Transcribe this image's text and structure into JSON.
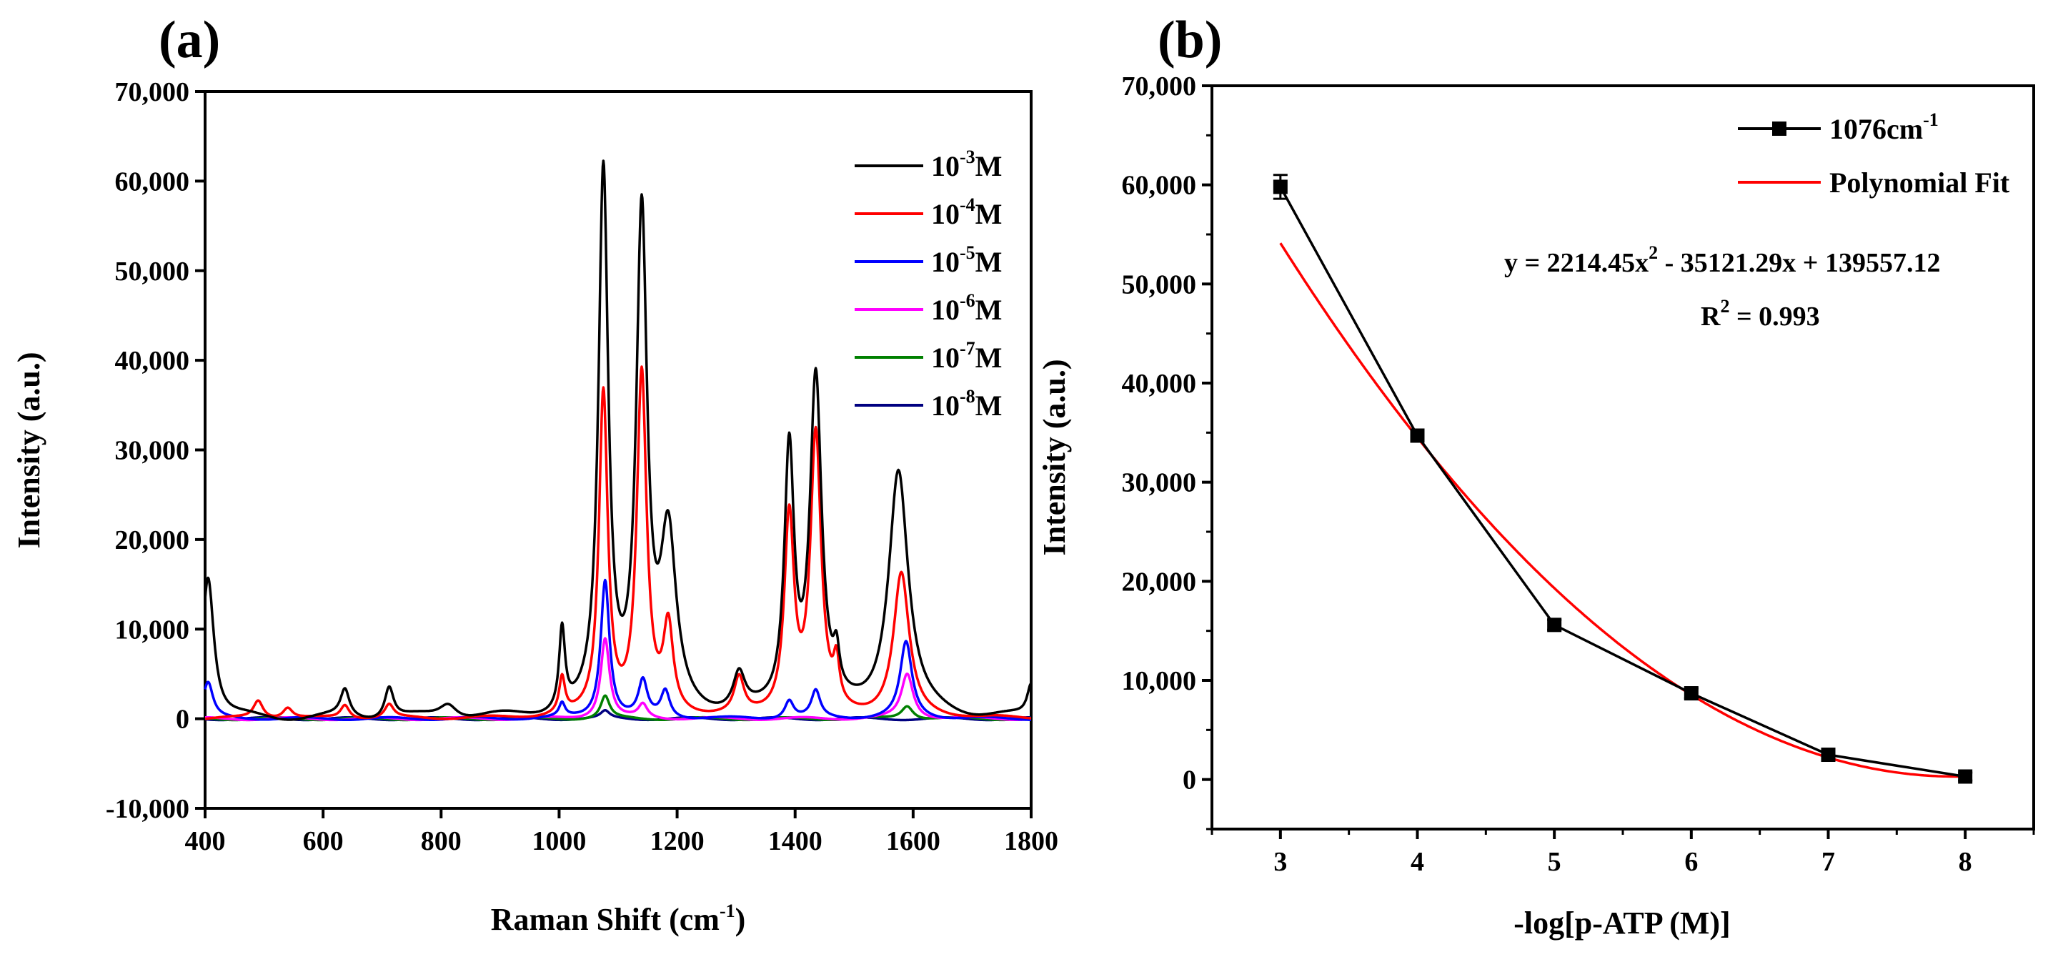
{
  "chart_data": [
    {
      "type": "line",
      "panel_label": "(a)",
      "xlabel": "Raman Shift (cm",
      "xlabel_sup": "-1",
      "xlabel_suffix": ")",
      "ylabel": "Intensity (a.u.)",
      "xlim": [
        400,
        1800
      ],
      "ylim": [
        -10000,
        70000
      ],
      "xticks": [
        400,
        600,
        800,
        1000,
        1200,
        1400,
        1600,
        1800
      ],
      "xtick_labels": [
        "400",
        "600",
        "800",
        "1000",
        "1200",
        "1400",
        "1600",
        "1800"
      ],
      "yticks": [
        -10000,
        0,
        10000,
        20000,
        30000,
        40000,
        50000,
        60000,
        70000
      ],
      "ytick_labels": [
        "-10,000",
        "0",
        "10,000",
        "20,000",
        "30,000",
        "40,000",
        "50,000",
        "60,000",
        "70,000"
      ],
      "legend_position": "top-right",
      "series": [
        {
          "name": "10",
          "exp": "-3",
          "unit": "M",
          "color": "#000000",
          "peaks": [
            [
              405,
              16000,
              12
            ],
            [
              637,
              3000,
              9
            ],
            [
              712,
              3500,
              9
            ],
            [
              812,
              1600,
              18
            ],
            [
              1005,
              9000,
              6
            ],
            [
              1075,
              60000,
              10
            ],
            [
              1140,
              55000,
              11
            ],
            [
              1185,
              19000,
              16
            ],
            [
              1305,
              4000,
              12
            ],
            [
              1390,
              29000,
              10
            ],
            [
              1435,
              37000,
              12
            ],
            [
              1470,
              4000,
              6
            ],
            [
              1575,
              27500,
              20
            ],
            [
              1800,
              3500,
              8
            ]
          ]
        },
        {
          "name": "10",
          "exp": "-4",
          "unit": "M",
          "color": "#ff0000",
          "peaks": [
            [
              490,
              2000,
              10
            ],
            [
              540,
              1200,
              10
            ],
            [
              637,
              1500,
              9
            ],
            [
              712,
              1500,
              9
            ],
            [
              1005,
              4000,
              6
            ],
            [
              1075,
              36000,
              9
            ],
            [
              1140,
              38000,
              10
            ],
            [
              1185,
              9500,
              10
            ],
            [
              1305,
              4000,
              10
            ],
            [
              1390,
              22000,
              10
            ],
            [
              1435,
              31000,
              11
            ],
            [
              1470,
              4500,
              6
            ],
            [
              1580,
              16000,
              16
            ]
          ]
        },
        {
          "name": "10",
          "exp": "-5",
          "unit": "M",
          "color": "#0000ff",
          "peaks": [
            [
              405,
              4000,
              10
            ],
            [
              1005,
              1500,
              6
            ],
            [
              1078,
              15500,
              9
            ],
            [
              1142,
              4000,
              9
            ],
            [
              1180,
              3000,
              9
            ],
            [
              1390,
              2000,
              9
            ],
            [
              1435,
              3000,
              9
            ],
            [
              1588,
              8500,
              12
            ]
          ]
        },
        {
          "name": "10",
          "exp": "-6",
          "unit": "M",
          "color": "#ff00ff",
          "peaks": [
            [
              1078,
              9000,
              9
            ],
            [
              1142,
              1500,
              9
            ],
            [
              1590,
              5000,
              12
            ]
          ]
        },
        {
          "name": "10",
          "exp": "-7",
          "unit": "M",
          "color": "#008000",
          "peaks": [
            [
              1078,
              2500,
              9
            ],
            [
              1590,
              1500,
              12
            ]
          ]
        },
        {
          "name": "10",
          "exp": "-8",
          "unit": "M",
          "color": "#000080",
          "peaks": [
            [
              1078,
              800,
              9
            ]
          ]
        }
      ]
    },
    {
      "type": "line",
      "panel_label": "(b)",
      "xlabel": "-log[p-ATP (M)]",
      "ylabel": "Intensity (a.u.)",
      "xlim": [
        2.5,
        8.5
      ],
      "ylim": [
        -5000,
        70000
      ],
      "xticks": [
        3,
        4,
        5,
        6,
        7,
        8
      ],
      "xtick_labels": [
        "3",
        "4",
        "5",
        "6",
        "7",
        "8"
      ],
      "yticks": [
        0,
        10000,
        20000,
        30000,
        40000,
        50000,
        60000,
        70000
      ],
      "ytick_labels": [
        "0",
        "10,000",
        "20,000",
        "30,000",
        "40,000",
        "50,000",
        "60,000",
        "70,000"
      ],
      "legend_position": "top-right",
      "series": [
        {
          "name": "1076cm",
          "sup": "-1",
          "color": "#000000",
          "marker": "square",
          "x": [
            3,
            4,
            5,
            6,
            7,
            8
          ],
          "y": [
            59800,
            34700,
            15600,
            8700,
            2500,
            300
          ],
          "err": [
            1200,
            600,
            500,
            500,
            400,
            400
          ]
        },
        {
          "name": "Polynomial Fit",
          "color": "#ff0000",
          "coefficients": [
            2214.45,
            -35121.29,
            139557.12
          ]
        }
      ],
      "annotations": {
        "equation_prefix": "y = 2214.45x",
        "equation_sup": "2",
        "equation_suffix": " - 35121.29x + 139557.12",
        "r2_prefix": "R",
        "r2_sup": "2",
        "r2_suffix": " = 0.993"
      }
    }
  ]
}
